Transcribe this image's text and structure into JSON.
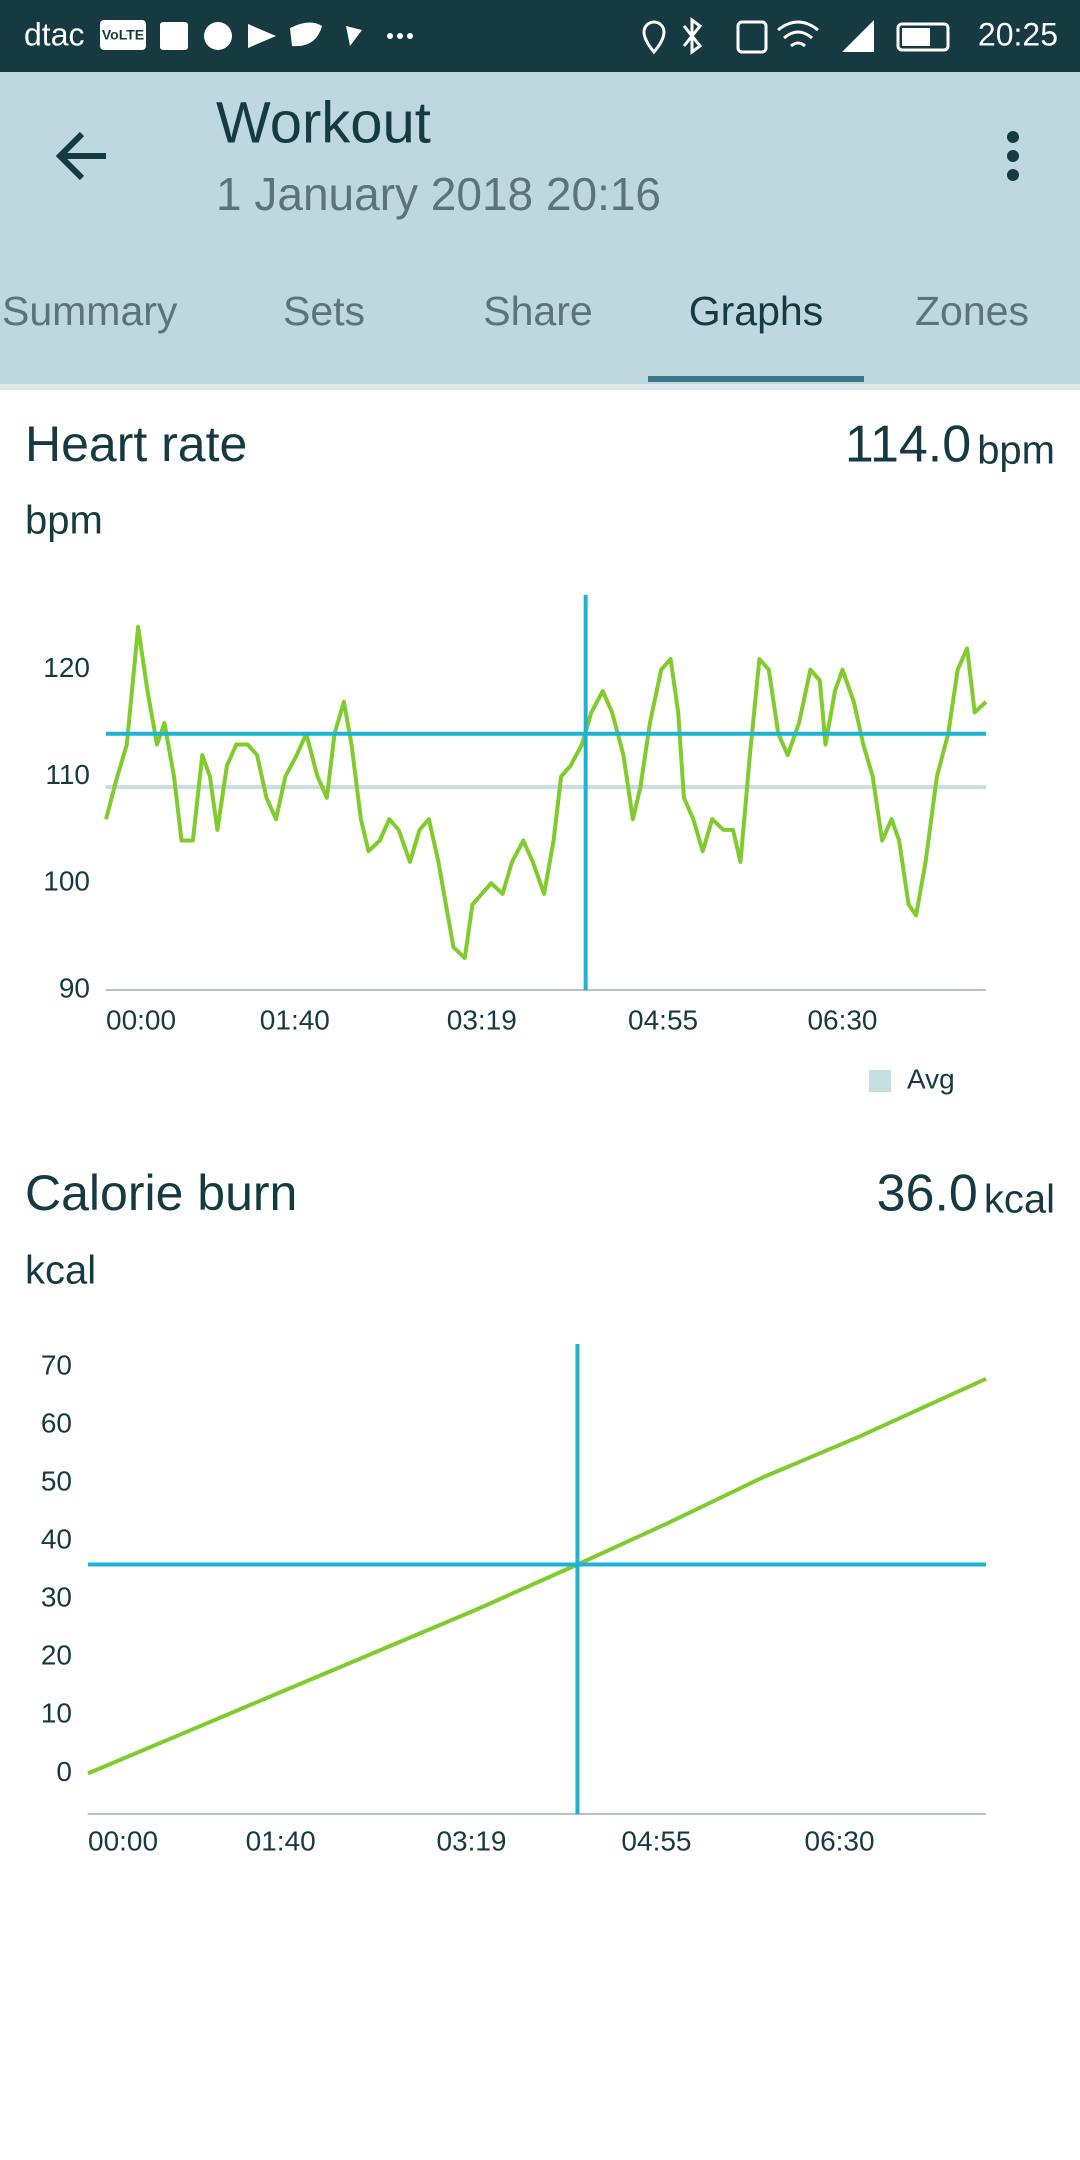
{
  "status_bar": {
    "carrier": "dtac",
    "volte": "VoLTE",
    "time": "20:25"
  },
  "header": {
    "title": "Workout",
    "subtitle": "1 January 2018 20:16"
  },
  "tabs": {
    "items": [
      "Summary",
      "Sets",
      "Share",
      "Graphs",
      "Zones"
    ],
    "active": 3
  },
  "chart_data": [
    {
      "type": "line",
      "title": "Heart rate",
      "y_label": "bpm",
      "cursor": {
        "x": 254,
        "y": 114,
        "value_label": "114.0",
        "unit": "bpm",
        "color": "#1cb3d4"
      },
      "avg": 109,
      "avg_color": "#c6dde1",
      "legend": [
        "Avg"
      ],
      "x": [
        0,
        6,
        11,
        17,
        22,
        27,
        31,
        36,
        40,
        46,
        51,
        55,
        59,
        64,
        69,
        75,
        80,
        85,
        90,
        95,
        101,
        106,
        112,
        117,
        121,
        126,
        130,
        135,
        139,
        145,
        150,
        155,
        161,
        166,
        171,
        176,
        180,
        184,
        190,
        194,
        199,
        204,
        210,
        215,
        221,
        226,
        232,
        237,
        241,
        246,
        252,
        257,
        263,
        268,
        274,
        279,
        283,
        288,
        294,
        299,
        303,
        306,
        311,
        316,
        321,
        327,
        332,
        336,
        341,
        346,
        351,
        356,
        361,
        367,
        373,
        378,
        381,
        386,
        390,
        396,
        401,
        406,
        411,
        416,
        420,
        425,
        429,
        434,
        440,
        446,
        451,
        456,
        460,
        466
      ],
      "series": [
        {
          "name": "Heart rate",
          "color": "#7fcc2c",
          "values": [
            106,
            110,
            113,
            124,
            118,
            113,
            115,
            110,
            104,
            104,
            112,
            110,
            105,
            111,
            113,
            113,
            112,
            108,
            106,
            110,
            112,
            114,
            110,
            108,
            114,
            117,
            113,
            106,
            103,
            104,
            106,
            105,
            102,
            105,
            106,
            102,
            98,
            94,
            93,
            98,
            99,
            100,
            99,
            102,
            104,
            102,
            99,
            104,
            110,
            111,
            113,
            116,
            118,
            116,
            112,
            106,
            109,
            115,
            120,
            121,
            116,
            108,
            106,
            103,
            106,
            105,
            105,
            102,
            112,
            121,
            120,
            114,
            112,
            115,
            120,
            119,
            113,
            118,
            120,
            117,
            113,
            110,
            104,
            106,
            104,
            98,
            97,
            102,
            110,
            114,
            120,
            122,
            116,
            117
          ]
        }
      ],
      "xlim": [
        0,
        466
      ],
      "ylim": [
        90,
        127
      ],
      "xticks": [
        {
          "value": 0,
          "label": "00:00"
        },
        {
          "value": 100,
          "label": "01:40"
        },
        {
          "value": 199,
          "label": "03:19"
        },
        {
          "value": 295,
          "label": "04:55"
        },
        {
          "value": 390,
          "label": "06:30"
        }
      ],
      "yticks": [
        90,
        100,
        110,
        120
      ]
    },
    {
      "type": "line",
      "title": "Calorie burn",
      "y_label": "kcal",
      "cursor": {
        "x": 254,
        "y": 36,
        "value_label": "36.0",
        "unit": "kcal",
        "color": "#1cb3d4"
      },
      "x": [
        0,
        50,
        100,
        150,
        200,
        254,
        300,
        350,
        400,
        466
      ],
      "series": [
        {
          "name": "Calorie burn",
          "color": "#7fcc2c",
          "values": [
            0,
            7,
            14,
            21,
            28,
            36,
            43,
            51,
            58,
            68
          ]
        }
      ],
      "xlim": [
        0,
        466
      ],
      "ylim": [
        -7,
        74
      ],
      "xticks": [
        {
          "value": 0,
          "label": "00:00"
        },
        {
          "value": 100,
          "label": "01:40"
        },
        {
          "value": 199,
          "label": "03:19"
        },
        {
          "value": 295,
          "label": "04:55"
        },
        {
          "value": 390,
          "label": "06:30"
        }
      ],
      "yticks": [
        0,
        10,
        20,
        30,
        40,
        50,
        60,
        70
      ]
    }
  ]
}
